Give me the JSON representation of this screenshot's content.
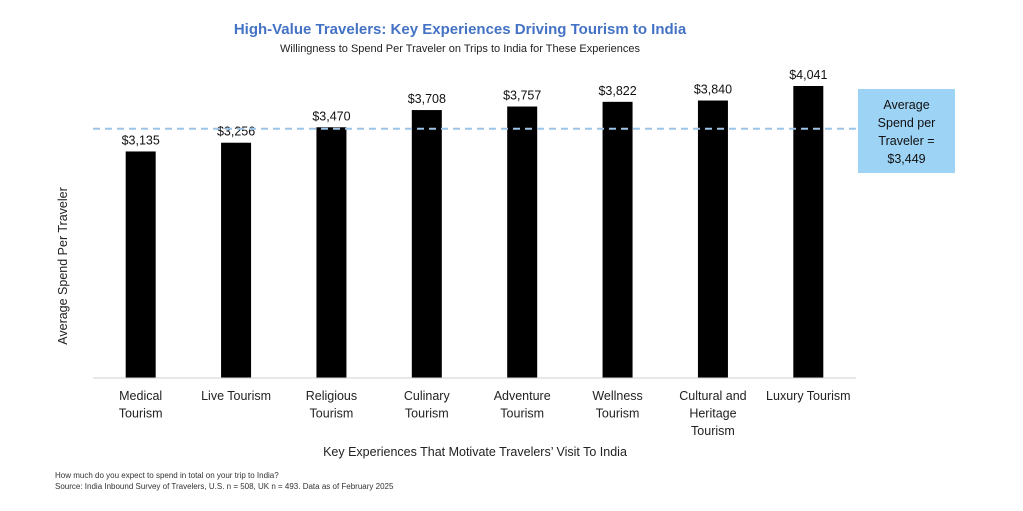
{
  "colors": {
    "title": "#4472C4",
    "bar": "#000000",
    "average_line": "#9DC3E6",
    "callout_box": "#9DD3F5"
  },
  "footnote": {
    "question": "How much do you expect to spend in total on your trip to India?",
    "source": "Source: India Inbound Survey of Travelers, U.S. n = 508, UK n  = 493. Data as of February 2025"
  },
  "chart_data": {
    "type": "bar",
    "title": "High-Value Travelers: Key Experiences Driving Tourism to India",
    "subtitle": "Willingness to Spend Per Traveler on Trips to India for These Experiences",
    "xlabel": "Key Experiences That Motivate Travelers’ Visit To India",
    "ylabel": "Average Spend Per Traveler",
    "categories": [
      [
        "Medical",
        "Tourism"
      ],
      [
        "Live Tourism"
      ],
      [
        "Religious",
        "Tourism"
      ],
      [
        "Culinary",
        "Tourism"
      ],
      [
        "Adventure",
        "Tourism"
      ],
      [
        "Wellness",
        "Tourism"
      ],
      [
        "Cultural and",
        "Heritage",
        "Tourism"
      ],
      [
        "Luxury Tourism"
      ]
    ],
    "values": [
      3135,
      3256,
      3470,
      3708,
      3757,
      3822,
      3840,
      4041
    ],
    "data_labels": [
      "$3,135",
      "$3,256",
      "$3,470",
      "$3,708",
      "$3,757",
      "$3,822",
      "$3,840",
      "$4,041"
    ],
    "ylim": [
      0,
      4041
    ],
    "grid": false,
    "average": {
      "value": 3449,
      "label_lines": [
        "Average",
        "Spend per",
        "Traveler =",
        "$3,449"
      ]
    }
  }
}
